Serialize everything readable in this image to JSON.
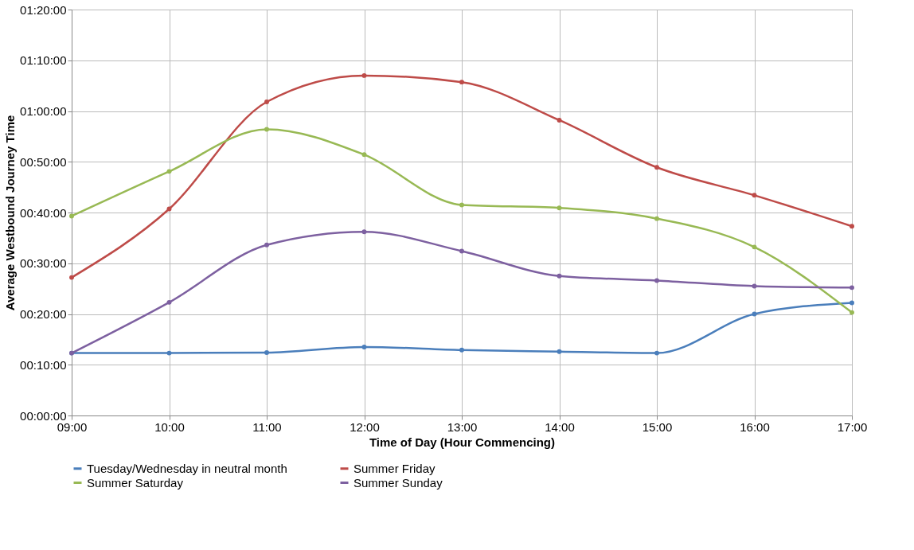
{
  "chart_data": {
    "type": "line",
    "xlabel": "Time of Day (Hour Commencing)",
    "ylabel": "Average Westbound Journey Time",
    "x": [
      9,
      10,
      11,
      12,
      13,
      14,
      15,
      16,
      17
    ],
    "xlim": [
      9,
      17
    ],
    "xticks": [
      {
        "value": 9,
        "label": "09:00"
      },
      {
        "value": 10,
        "label": "10:00"
      },
      {
        "value": 11,
        "label": "11:00"
      },
      {
        "value": 12,
        "label": "12:00"
      },
      {
        "value": 13,
        "label": "13:00"
      },
      {
        "value": 14,
        "label": "14:00"
      },
      {
        "value": 15,
        "label": "15:00"
      },
      {
        "value": 16,
        "label": "16:00"
      },
      {
        "value": 17,
        "label": "17:00"
      }
    ],
    "ylim": [
      0,
      80
    ],
    "yticks": [
      {
        "value": 0,
        "label": "00:00:00"
      },
      {
        "value": 10,
        "label": "00:10:00"
      },
      {
        "value": 20,
        "label": "00:20:00"
      },
      {
        "value": 30,
        "label": "00:30:00"
      },
      {
        "value": 40,
        "label": "00:40:00"
      },
      {
        "value": 50,
        "label": "00:50:00"
      },
      {
        "value": 60,
        "label": "01:00:00"
      },
      {
        "value": 70,
        "label": "01:10:00"
      },
      {
        "value": 80,
        "label": "01:20:00"
      }
    ],
    "grid": true,
    "legend": "bottom",
    "marker": "circle",
    "line_style": "solid",
    "series": [
      {
        "name": "Tuesday/Wednesday in neutral month",
        "color": "#4a7ebb",
        "values": [
          12.3,
          12.3,
          12.4,
          13.5,
          12.9,
          12.6,
          12.3,
          20.0,
          22.2
        ]
      },
      {
        "name": "Summer Friday",
        "color": "#be4b48",
        "values": [
          27.2,
          40.7,
          61.8,
          67.0,
          65.7,
          58.2,
          48.9,
          43.4,
          37.3
        ]
      },
      {
        "name": "Summer Saturday",
        "color": "#98b954",
        "values": [
          39.3,
          48.1,
          56.4,
          51.4,
          41.5,
          40.9,
          38.8,
          33.2,
          20.3
        ]
      },
      {
        "name": "Summer Sunday",
        "color": "#7d60a0",
        "values": [
          12.3,
          22.3,
          33.6,
          36.2,
          32.4,
          27.5,
          26.6,
          25.5,
          25.2
        ]
      }
    ]
  }
}
